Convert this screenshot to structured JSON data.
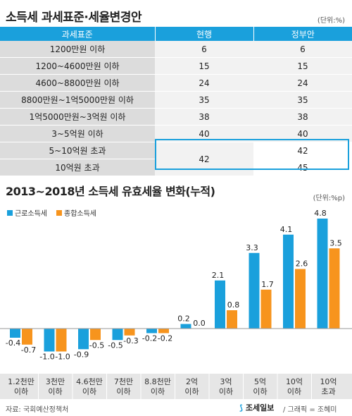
{
  "title": "소득세 과세표준·세율변경안",
  "unit": "(단위:%)",
  "table": {
    "headers": [
      "과세표준",
      "현행",
      "정부안"
    ],
    "rows": [
      {
        "bracket": "1200만원 이하",
        "current": "6",
        "proposed": "6"
      },
      {
        "bracket": "1200~4600만원 이하",
        "current": "15",
        "proposed": "15"
      },
      {
        "bracket": "4600~8800만원 이하",
        "current": "24",
        "proposed": "24"
      },
      {
        "bracket": "8800만원~1억5000만원 이하",
        "current": "35",
        "proposed": "35"
      },
      {
        "bracket": "1억5000만원~3억원 이하",
        "current": "38",
        "proposed": "38"
      },
      {
        "bracket": "3~5억원 이하",
        "current": "40",
        "proposed": "40"
      },
      {
        "bracket": "5~10억원 초과",
        "current": "42",
        "proposed": "42"
      },
      {
        "bracket": "10억원 초과",
        "current": "",
        "proposed": "45"
      }
    ]
  },
  "chart_data": {
    "type": "bar",
    "title": "2013~2018년 소득세 유효세율 변화(누적)",
    "unit": "(단위:%p)",
    "categories": [
      [
        "1.2천만",
        "이하"
      ],
      [
        "3천만",
        "이하"
      ],
      [
        "4.6천만",
        "이하"
      ],
      [
        "7천만",
        "이하"
      ],
      [
        "8.8천만",
        "이하"
      ],
      [
        "2억",
        "이하"
      ],
      [
        "3억",
        "이하"
      ],
      [
        "5억",
        "이하"
      ],
      [
        "10억",
        "이하"
      ],
      [
        "10억",
        "초과"
      ]
    ],
    "series": [
      {
        "name": "근로소득세",
        "color": "#1aa0dc",
        "values": [
          -0.4,
          -1.0,
          -0.9,
          -0.5,
          -0.2,
          0.2,
          2.1,
          3.3,
          4.1,
          4.8
        ]
      },
      {
        "name": "종합소득세",
        "color": "#f7941d",
        "values": [
          -0.7,
          -1.0,
          -0.5,
          -0.3,
          -0.2,
          0.0,
          0.8,
          1.7,
          2.6,
          3.5
        ]
      }
    ],
    "value_labels": [
      [
        "-0.4",
        "-1.0",
        "-0.9",
        "-0.5",
        "-0.2",
        "0.2",
        "2.1",
        "3.3",
        "4.1",
        "4.8"
      ],
      [
        "-0.7",
        "-1.0",
        "-0.5",
        "-0.3",
        "-0.2",
        "0.0",
        "0.8",
        "1.7",
        "2.6",
        "3.5"
      ]
    ],
    "legend_position": "top-left"
  },
  "source": "자료: 국회예산정책처",
  "logo": "조세일보",
  "credit": "/ 그래픽 = 조혜미"
}
